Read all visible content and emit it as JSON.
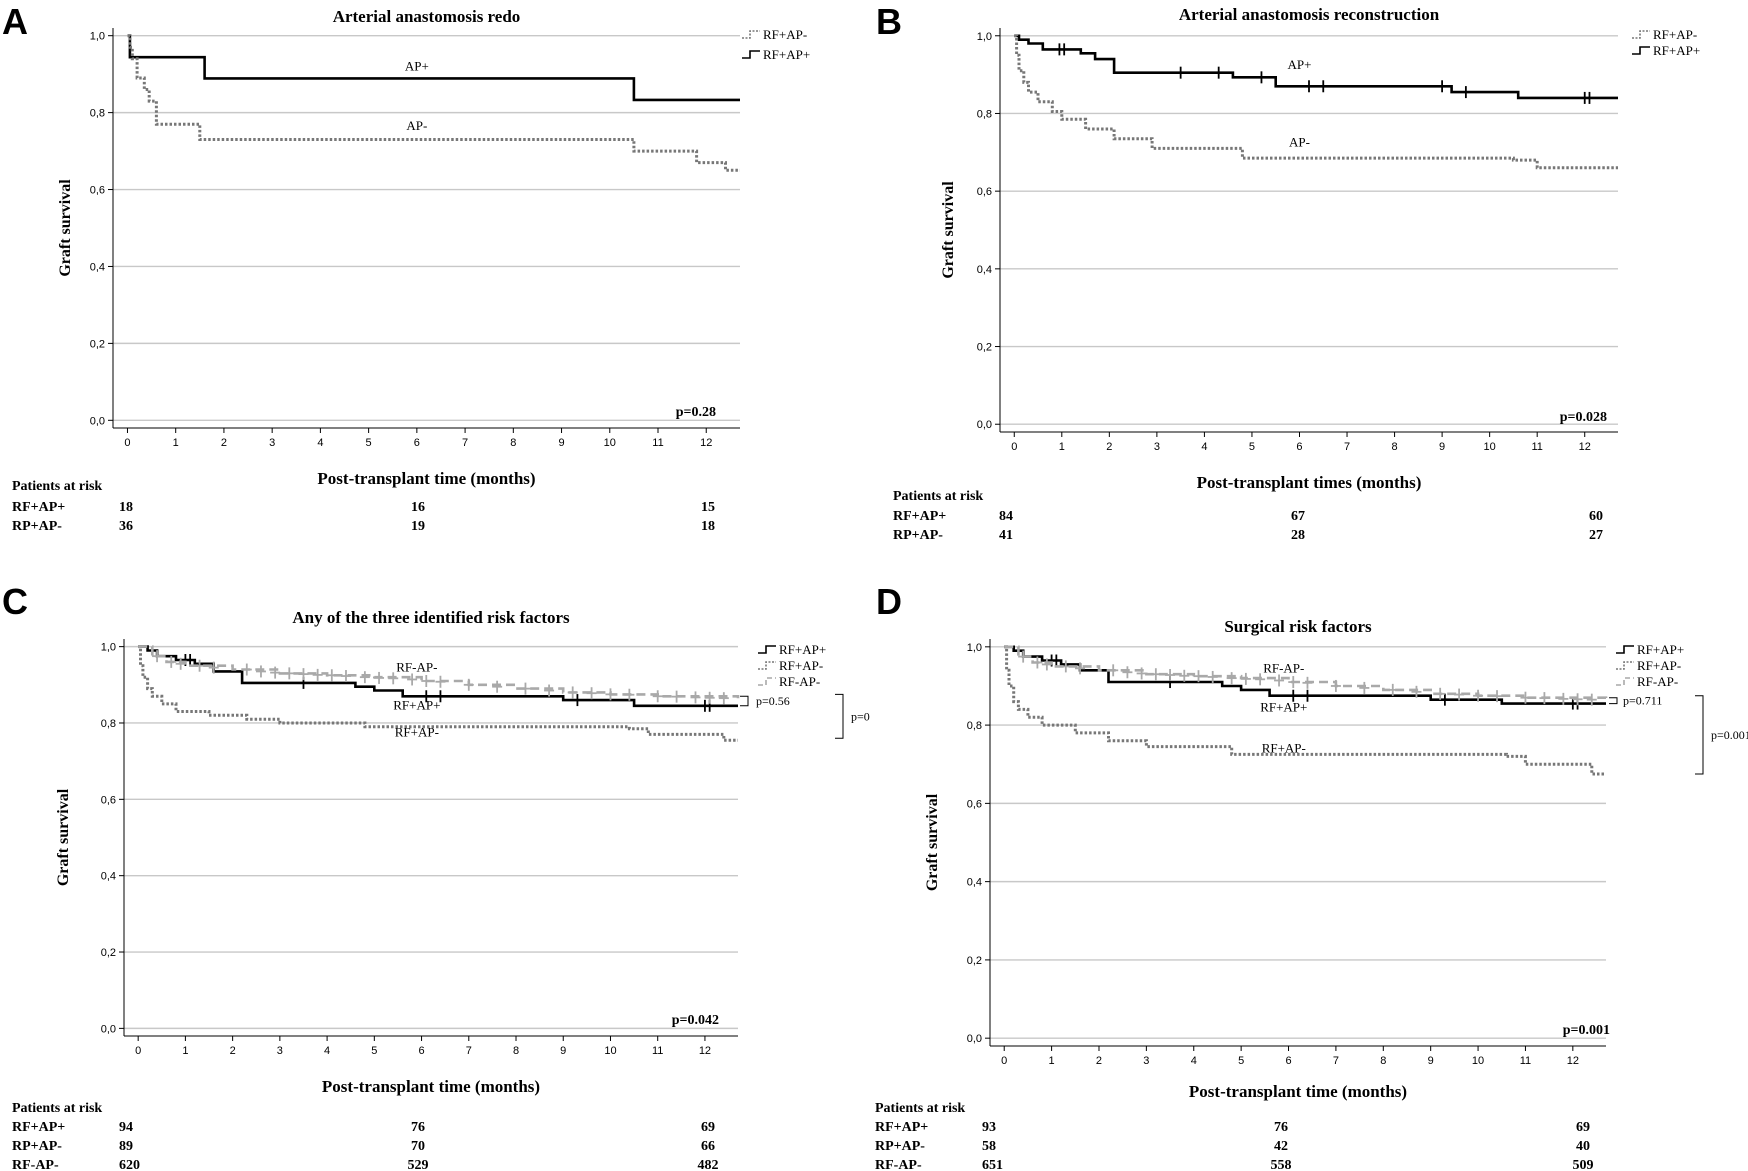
{
  "chart_data": [
    {
      "id": "A",
      "type": "line",
      "letter": "A",
      "title": "Arterial anastomosis redo",
      "xlabel": "Post-transplant time (months)",
      "ylabel": "Graft survival",
      "xlim": [
        -0.3,
        12.7
      ],
      "ylim": [
        -0.02,
        1.02
      ],
      "xticks": [
        "0",
        "1",
        "2",
        "3",
        "4",
        "5",
        "6",
        "7",
        "8",
        "9",
        "10",
        "11",
        "12"
      ],
      "yticks": [
        "0,0",
        "0,2",
        "0,4",
        "0,6",
        "0,8",
        "1,0"
      ],
      "grid": true,
      "p_value": "p=0.28",
      "legend": [
        "RF+AP-",
        "RF+AP+"
      ],
      "series": [
        {
          "name": "RF+AP+",
          "style": "solid",
          "color": "#000000",
          "x": [
            0,
            0.05,
            1.6,
            10.5,
            12.7
          ],
          "y": [
            1.0,
            0.944,
            0.889,
            0.833,
            0.833
          ],
          "censor": []
        },
        {
          "name": "RF+AP-",
          "style": "dotted",
          "color": "#777777",
          "x": [
            0,
            0.05,
            0.1,
            0.2,
            0.35,
            0.45,
            0.6,
            1.5,
            10.5,
            11.8,
            12.4,
            12.7
          ],
          "y": [
            1.0,
            0.97,
            0.94,
            0.89,
            0.86,
            0.83,
            0.77,
            0.73,
            0.7,
            0.67,
            0.65,
            0.65
          ],
          "censor": []
        }
      ],
      "annotations": [
        {
          "text": "AP+",
          "x": 6.0,
          "y": 0.91
        },
        {
          "text": "AP-",
          "x": 6.0,
          "y": 0.755
        }
      ],
      "brackets": [],
      "risk_header": "Patients at risk",
      "risk_rows": [
        {
          "label": "RF+AP+",
          "values": [
            "18",
            "16",
            "15"
          ]
        },
        {
          "label": "RP+AP-",
          "values": [
            "36",
            "19",
            "18"
          ]
        }
      ]
    },
    {
      "id": "B",
      "type": "line",
      "letter": "B",
      "title": "Arterial anastomosis reconstruction",
      "xlabel": "Post-transplant times (months)",
      "ylabel": "Graft survival",
      "xlim": [
        -0.3,
        12.7
      ],
      "ylim": [
        -0.02,
        1.02
      ],
      "xticks": [
        "0",
        "1",
        "2",
        "3",
        "4",
        "5",
        "6",
        "7",
        "8",
        "9",
        "10",
        "11",
        "12"
      ],
      "yticks": [
        "0,0",
        "0,2",
        "0,4",
        "0,6",
        "0,8",
        "1,0"
      ],
      "grid": true,
      "p_value": "p=0.028",
      "legend": [
        "RF+AP-",
        "RF+AP+"
      ],
      "series": [
        {
          "name": "RF+AP+",
          "style": "solid",
          "color": "#000000",
          "x": [
            0,
            0.1,
            0.3,
            0.6,
            1.4,
            1.7,
            2.1,
            4.6,
            5.5,
            9.2,
            10.6,
            12.7
          ],
          "y": [
            1.0,
            0.99,
            0.98,
            0.965,
            0.955,
            0.94,
            0.905,
            0.893,
            0.87,
            0.855,
            0.84,
            0.84
          ],
          "censor": [
            [
              0.95,
              0.965
            ],
            [
              1.05,
              0.965
            ],
            [
              3.5,
              0.905
            ],
            [
              4.3,
              0.905
            ],
            [
              5.2,
              0.893
            ],
            [
              6.2,
              0.87
            ],
            [
              6.5,
              0.87
            ],
            [
              9.0,
              0.87
            ],
            [
              9.5,
              0.855
            ],
            [
              12.0,
              0.84
            ],
            [
              12.1,
              0.84
            ]
          ]
        },
        {
          "name": "RF+AP-",
          "style": "dotted",
          "color": "#777777",
          "x": [
            0,
            0.05,
            0.1,
            0.2,
            0.3,
            0.5,
            0.8,
            1.0,
            1.5,
            2.1,
            2.9,
            4.8,
            10.5,
            11.0,
            12.7
          ],
          "y": [
            1.0,
            0.95,
            0.91,
            0.88,
            0.855,
            0.83,
            0.805,
            0.785,
            0.76,
            0.735,
            0.71,
            0.685,
            0.68,
            0.66,
            0.66
          ],
          "censor": []
        }
      ],
      "annotations": [
        {
          "text": "AP+",
          "x": 6.0,
          "y": 0.915
        },
        {
          "text": "AP-",
          "x": 6.0,
          "y": 0.715
        }
      ],
      "brackets": [],
      "risk_header": "Patients at risk",
      "risk_rows": [
        {
          "label": "RF+AP+",
          "values": [
            "84",
            "67",
            "60"
          ]
        },
        {
          "label": "RP+AP-",
          "values": [
            "41",
            "28",
            "27"
          ]
        }
      ]
    },
    {
      "id": "C",
      "type": "line",
      "letter": "C",
      "title": "Any of the three identified risk factors",
      "xlabel": "Post-transplant time (months)",
      "ylabel": "Graft survival",
      "xlim": [
        -0.3,
        12.7
      ],
      "ylim": [
        -0.02,
        1.02
      ],
      "xticks": [
        "0",
        "1",
        "2",
        "3",
        "4",
        "5",
        "6",
        "7",
        "8",
        "9",
        "10",
        "11",
        "12"
      ],
      "yticks": [
        "0,0",
        "0,2",
        "0,4",
        "0,6",
        "0,8",
        "1,0"
      ],
      "grid": true,
      "p_value": "p=0.042",
      "legend": [
        "RF+AP+",
        "RF+AP-",
        "RF-AP-"
      ],
      "series": [
        {
          "name": "RF+AP+",
          "style": "solid",
          "color": "#000000",
          "x": [
            0,
            0.2,
            0.4,
            0.8,
            1.2,
            1.6,
            2.2,
            4.6,
            5.0,
            5.6,
            9.0,
            10.5,
            12.7
          ],
          "y": [
            1.0,
            0.99,
            0.975,
            0.965,
            0.955,
            0.935,
            0.905,
            0.895,
            0.885,
            0.87,
            0.86,
            0.845,
            0.845
          ],
          "censor": [
            [
              1.0,
              0.965
            ],
            [
              1.1,
              0.965
            ],
            [
              3.5,
              0.905
            ],
            [
              6.1,
              0.87
            ],
            [
              6.4,
              0.87
            ],
            [
              9.3,
              0.86
            ],
            [
              12.0,
              0.845
            ],
            [
              12.1,
              0.845
            ]
          ]
        },
        {
          "name": "RF+AP-",
          "style": "dotted",
          "color": "#777777",
          "x": [
            0,
            0.05,
            0.1,
            0.2,
            0.3,
            0.5,
            0.8,
            1.5,
            2.3,
            3.0,
            4.8,
            10.4,
            10.8,
            12.4,
            12.7
          ],
          "y": [
            1.0,
            0.95,
            0.92,
            0.89,
            0.87,
            0.85,
            0.83,
            0.82,
            0.81,
            0.8,
            0.79,
            0.785,
            0.77,
            0.755,
            0.755
          ],
          "censor": []
        },
        {
          "name": "RF-AP-",
          "style": "dashed",
          "color": "#a9a9a9",
          "x": [
            0,
            0.3,
            0.6,
            1.0,
            2.0,
            3.0,
            4.0,
            5.0,
            6.0,
            7.0,
            8.0,
            9.0,
            10.0,
            11.0,
            12.7
          ],
          "y": [
            1.0,
            0.975,
            0.96,
            0.95,
            0.94,
            0.93,
            0.925,
            0.92,
            0.91,
            0.9,
            0.89,
            0.88,
            0.875,
            0.87,
            0.865
          ],
          "censor": [
            [
              0.4,
              0.975
            ],
            [
              0.7,
              0.96
            ],
            [
              0.9,
              0.955
            ],
            [
              1.3,
              0.95
            ],
            [
              1.6,
              0.945
            ],
            [
              2.3,
              0.94
            ],
            [
              2.6,
              0.935
            ],
            [
              2.9,
              0.932
            ],
            [
              3.2,
              0.93
            ],
            [
              3.5,
              0.928
            ],
            [
              3.8,
              0.926
            ],
            [
              4.1,
              0.925
            ],
            [
              4.4,
              0.923
            ],
            [
              4.8,
              0.92
            ],
            [
              5.1,
              0.918
            ],
            [
              5.4,
              0.917
            ],
            [
              5.8,
              0.914
            ],
            [
              6.1,
              0.91
            ],
            [
              6.4,
              0.908
            ],
            [
              7.0,
              0.9
            ],
            [
              7.6,
              0.895
            ],
            [
              8.2,
              0.89
            ],
            [
              8.7,
              0.885
            ],
            [
              9.2,
              0.88
            ],
            [
              9.6,
              0.878
            ],
            [
              10.0,
              0.875
            ],
            [
              10.4,
              0.874
            ],
            [
              11.0,
              0.87
            ],
            [
              11.4,
              0.869
            ],
            [
              11.8,
              0.867
            ],
            [
              12.1,
              0.866
            ],
            [
              12.4,
              0.865
            ]
          ]
        }
      ],
      "annotations": [
        {
          "text": "RF-AP-",
          "x": 5.9,
          "y": 0.935
        },
        {
          "text": "RF+AP+",
          "x": 5.9,
          "y": 0.835
        },
        {
          "text": "RF+AP-",
          "x": 5.9,
          "y": 0.765
        }
      ],
      "brackets": [
        {
          "label": "p=0.56",
          "y1": 0.87,
          "y2": 0.845,
          "col": 0
        },
        {
          "label": "p=0",
          "y1": 0.875,
          "y2": 0.76,
          "col": 1
        }
      ],
      "risk_header": "Patients at risk",
      "risk_rows": [
        {
          "label": "RF+AP+",
          "values": [
            "94",
            "76",
            "69"
          ]
        },
        {
          "label": "RP+AP-",
          "values": [
            "89",
            "70",
            "66"
          ]
        },
        {
          "label": "RF-AP-",
          "values": [
            "620",
            "529",
            "482"
          ]
        }
      ]
    },
    {
      "id": "D",
      "type": "line",
      "letter": "D",
      "title": "Surgical risk factors",
      "xlabel": "Post-transplant time (months)",
      "ylabel": "Graft survival",
      "xlim": [
        -0.3,
        12.7
      ],
      "ylim": [
        -0.02,
        1.02
      ],
      "xticks": [
        "0",
        "1",
        "2",
        "3",
        "4",
        "5",
        "6",
        "7",
        "8",
        "9",
        "10",
        "11",
        "12"
      ],
      "yticks": [
        "0,0",
        "0,2",
        "0,4",
        "0,6",
        "0,8",
        "1,0"
      ],
      "grid": true,
      "p_value": "p=0.001",
      "legend": [
        "RF+AP+",
        "RF+AP-",
        "RF-AP-"
      ],
      "series": [
        {
          "name": "RF+AP+",
          "style": "solid",
          "color": "#000000",
          "x": [
            0,
            0.2,
            0.4,
            0.8,
            1.2,
            1.6,
            2.2,
            4.6,
            5.0,
            5.6,
            9.0,
            10.5,
            12.7
          ],
          "y": [
            1.0,
            0.99,
            0.975,
            0.965,
            0.955,
            0.94,
            0.91,
            0.9,
            0.89,
            0.875,
            0.865,
            0.855,
            0.855
          ],
          "censor": [
            [
              1.0,
              0.965
            ],
            [
              1.1,
              0.965
            ],
            [
              3.5,
              0.91
            ],
            [
              6.1,
              0.875
            ],
            [
              6.4,
              0.875
            ],
            [
              9.3,
              0.865
            ],
            [
              12.0,
              0.855
            ],
            [
              12.1,
              0.855
            ]
          ]
        },
        {
          "name": "RF+AP-",
          "style": "dotted",
          "color": "#777777",
          "x": [
            0,
            0.05,
            0.1,
            0.2,
            0.3,
            0.5,
            0.8,
            1.5,
            2.2,
            3.0,
            4.8,
            10.6,
            11.0,
            12.4,
            12.7
          ],
          "y": [
            1.0,
            0.94,
            0.9,
            0.86,
            0.84,
            0.82,
            0.8,
            0.78,
            0.76,
            0.745,
            0.725,
            0.72,
            0.7,
            0.675,
            0.675
          ],
          "censor": []
        },
        {
          "name": "RF-AP-",
          "style": "dashed",
          "color": "#a9a9a9",
          "x": [
            0,
            0.3,
            0.6,
            1.0,
            2.0,
            3.0,
            4.0,
            5.0,
            6.0,
            7.0,
            8.0,
            9.0,
            10.0,
            11.0,
            12.7
          ],
          "y": [
            1.0,
            0.975,
            0.96,
            0.95,
            0.94,
            0.93,
            0.925,
            0.92,
            0.91,
            0.9,
            0.89,
            0.88,
            0.875,
            0.87,
            0.865
          ],
          "censor": [
            [
              0.4,
              0.975
            ],
            [
              0.7,
              0.96
            ],
            [
              0.9,
              0.955
            ],
            [
              1.3,
              0.95
            ],
            [
              1.6,
              0.945
            ],
            [
              2.3,
              0.94
            ],
            [
              2.6,
              0.935
            ],
            [
              2.9,
              0.932
            ],
            [
              3.2,
              0.93
            ],
            [
              3.5,
              0.928
            ],
            [
              3.8,
              0.926
            ],
            [
              4.1,
              0.925
            ],
            [
              4.4,
              0.923
            ],
            [
              4.8,
              0.92
            ],
            [
              5.1,
              0.918
            ],
            [
              5.4,
              0.917
            ],
            [
              5.8,
              0.914
            ],
            [
              6.1,
              0.91
            ],
            [
              6.4,
              0.908
            ],
            [
              7.0,
              0.9
            ],
            [
              7.6,
              0.895
            ],
            [
              8.2,
              0.89
            ],
            [
              8.7,
              0.885
            ],
            [
              9.2,
              0.88
            ],
            [
              9.6,
              0.878
            ],
            [
              10.0,
              0.875
            ],
            [
              10.4,
              0.874
            ],
            [
              11.0,
              0.87
            ],
            [
              11.4,
              0.869
            ],
            [
              11.8,
              0.867
            ],
            [
              12.1,
              0.866
            ],
            [
              12.4,
              0.865
            ]
          ]
        }
      ],
      "annotations": [
        {
          "text": "RF-AP-",
          "x": 5.9,
          "y": 0.935
        },
        {
          "text": "RF+AP+",
          "x": 5.9,
          "y": 0.835
        },
        {
          "text": "RF+AP-",
          "x": 5.9,
          "y": 0.73
        }
      ],
      "brackets": [
        {
          "label": "p=0.711",
          "y1": 0.87,
          "y2": 0.855,
          "col": 0
        },
        {
          "label": "p=0.001",
          "y1": 0.875,
          "y2": 0.675,
          "col": 1
        }
      ],
      "risk_header": "Patients at risk",
      "risk_rows": [
        {
          "label": "RF+AP+",
          "values": [
            "93",
            "76",
            "69"
          ]
        },
        {
          "label": "RP+AP-",
          "values": [
            "58",
            "42",
            "40"
          ]
        },
        {
          "label": "RF-AP-",
          "values": [
            "651",
            "558",
            "509"
          ]
        }
      ]
    }
  ]
}
